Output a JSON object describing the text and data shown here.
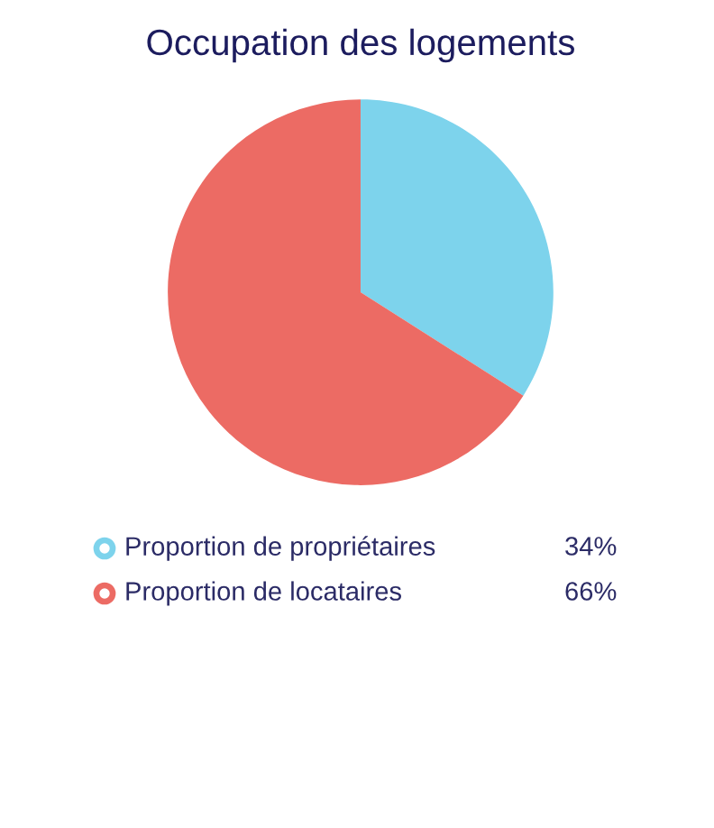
{
  "chart_data": {
    "type": "pie",
    "title": "Occupation des logements",
    "categories": [
      "Proportion de propriétaires",
      "Proportion de locataires"
    ],
    "values": [
      34,
      66
    ],
    "colors": [
      "#7dd3ec",
      "#ec6b64"
    ],
    "value_labels": [
      "34%",
      "66%"
    ],
    "legend": "bottom"
  }
}
